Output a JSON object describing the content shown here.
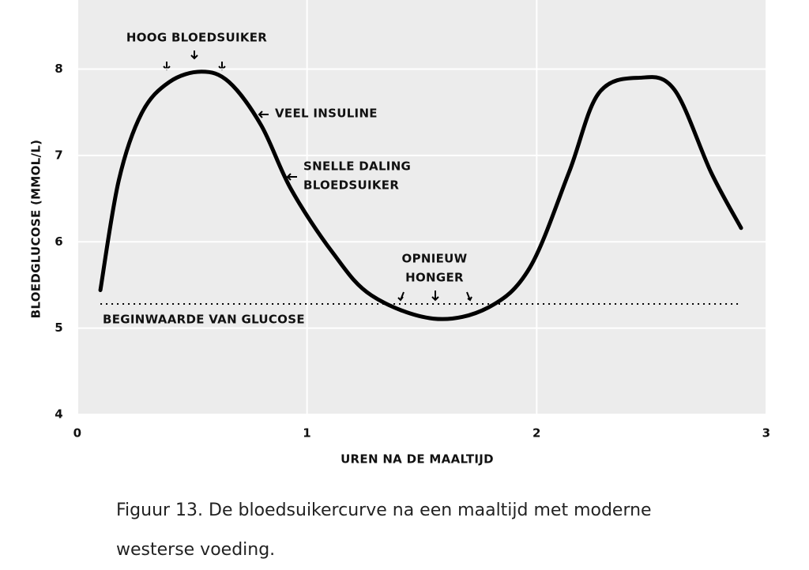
{
  "chart_data": {
    "type": "line",
    "x_label": "UREN NA DE MAALTIJD",
    "y_label": "BLOEDGLUCOSE (MMOL/L)",
    "x": [
      0.1,
      0.18,
      0.28,
      0.4,
      0.54,
      0.66,
      0.8,
      0.93,
      1.11,
      1.28,
      1.55,
      1.79,
      1.97,
      2.14,
      2.27,
      2.45,
      2.6,
      2.76,
      2.89
    ],
    "series": [
      {
        "color": "#000000",
        "values": [
          5.44,
          6.71,
          7.49,
          7.85,
          7.97,
          7.85,
          7.35,
          6.61,
          5.88,
          5.38,
          5.11,
          5.24,
          5.7,
          6.8,
          7.72,
          7.9,
          7.76,
          6.8,
          6.16
        ]
      }
    ],
    "baseline": {
      "label": "BEGINWAARDE VAN GLUCOSE",
      "value": 5.28
    },
    "annotations": [
      "HOOG BLOEDSUIKER",
      "VEEL INSULINE",
      "SNELLE DALING",
      "BLOEDSUIKER",
      "OPNIEUW",
      "HONGER"
    ],
    "xlim": [
      0,
      3
    ],
    "xticks": [
      0,
      1,
      2,
      3
    ],
    "ylim": [
      4,
      8.8
    ],
    "yticks": [
      4,
      5,
      6,
      7,
      8
    ],
    "grid": true,
    "caption": [
      "Figuur 13. De bloedsuikercurve na een maaltijd met moderne",
      "westerse voeding."
    ]
  }
}
